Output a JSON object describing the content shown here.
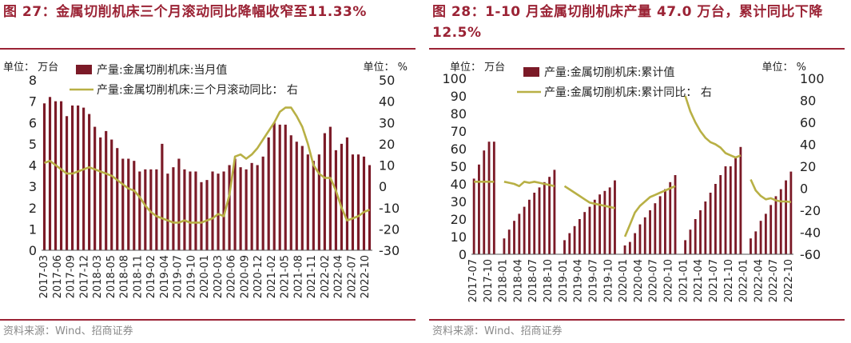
{
  "charts": [
    {
      "title": "图 27：金属切削机床三个月滚动同比降幅收窄至11.33%",
      "source": "资料来源：Wind、招商证券",
      "left_unit": "单位：  万台",
      "right_unit": "单位：  %",
      "legend": {
        "bar": "产量:金属切削机床:当月值",
        "line": "产量:金属切削机床:三个月滚动同比：  右"
      }
    },
    {
      "title": "图 28：1-10 月金属切削机床产量 47.0 万台，累计同比下降 12.5%",
      "source": "资料来源：Wind、招商证券",
      "left_unit": "单位：  万台",
      "right_unit": "单位：  %",
      "legend": {
        "bar": "产量:金属切削机床:累计值",
        "line": "产量:金属切削机床:累计同比：  右"
      }
    }
  ],
  "chart_data": [
    {
      "type": "bar+line",
      "colors": {
        "bar": "#7B1A27",
        "line": "#B8B045"
      },
      "x_ticks": [
        "2017-03",
        "2017-06",
        "2017-09",
        "2017-12",
        "2018-03",
        "2018-05",
        "2018-08",
        "2018-11",
        "2019-02",
        "2019-04",
        "2019-07",
        "2019-10",
        "2020-01",
        "2020-03",
        "2020-06",
        "2020-09",
        "2020-12",
        "2021-02",
        "2021-05",
        "2021-08",
        "2021-11",
        "2022-02",
        "2022-04",
        "2022-07",
        "2022-10"
      ],
      "ylim_left": [
        0,
        8
      ],
      "yticks_left": [
        0,
        1,
        2,
        3,
        4,
        5,
        6,
        7,
        8
      ],
      "ylim_right": [
        -30,
        50
      ],
      "yticks_right": [
        -30,
        -20,
        -10,
        0,
        10,
        20,
        30,
        40,
        50
      ],
      "bar_values": [
        6.9,
        7.2,
        7.0,
        7.0,
        6.3,
        6.8,
        6.8,
        6.7,
        6.4,
        5.8,
        5.3,
        5.6,
        5.2,
        4.8,
        4.3,
        4.3,
        4.2,
        3.7,
        3.8,
        3.8,
        3.8,
        5.0,
        3.6,
        3.9,
        4.3,
        3.8,
        3.7,
        3.7,
        3.2,
        3.3,
        3.7,
        3.6,
        3.7,
        4.0,
        4.3,
        3.9,
        3.8,
        4.1,
        4.0,
        4.4,
        5.3,
        6.0,
        5.9,
        5.9,
        5.4,
        5.1,
        4.9,
        4.5,
        4.2,
        4.5,
        5.5,
        5.8,
        4.7,
        5.0,
        5.3,
        4.5,
        4.5,
        4.4,
        4.0
      ],
      "line_values": [
        11,
        12,
        10,
        8,
        6,
        6,
        7,
        8,
        9,
        8,
        7,
        6,
        5,
        3,
        1,
        -1,
        -2,
        -5,
        -9,
        -12,
        -14,
        -15,
        -16,
        -17,
        -17,
        -16,
        -17,
        -17,
        -17,
        -16,
        -15,
        -13,
        -14,
        -4,
        14,
        15,
        13,
        15,
        18,
        22,
        26,
        30,
        35,
        37,
        37,
        33,
        28,
        20,
        10,
        6,
        4,
        4,
        -2,
        -10,
        -16,
        -15,
        -14,
        -12,
        -11
      ]
    },
    {
      "type": "bar+line",
      "colors": {
        "bar": "#7B1A27",
        "line": "#B8B045"
      },
      "x_ticks": [
        "2017-07",
        "2017-10",
        "2018-01",
        "2018-04",
        "2018-07",
        "2018-10",
        "2019-01",
        "2019-04",
        "2019-07",
        "2019-10",
        "2020-01",
        "2020-04",
        "2020-07",
        "2020-10",
        "2021-01",
        "2021-04",
        "2021-07",
        "2021-10",
        "2022-01",
        "2022-04",
        "2022-07",
        "2022-10"
      ],
      "ylim_left": [
        0,
        100
      ],
      "yticks_left": [
        0,
        10,
        20,
        30,
        40,
        50,
        60,
        70,
        80,
        90,
        100
      ],
      "ylim_right": [
        -60,
        100
      ],
      "yticks_right": [
        -60,
        -40,
        -20,
        0,
        20,
        40,
        60,
        80,
        100
      ],
      "bar_values": [
        43,
        51,
        59,
        64,
        64,
        null,
        9,
        14,
        19,
        23,
        27,
        31,
        35,
        38,
        41,
        44,
        48,
        null,
        8,
        12,
        16,
        20,
        24,
        27,
        31,
        34,
        36,
        38,
        42,
        null,
        5,
        7,
        12,
        17,
        21,
        25,
        29,
        33,
        37,
        41,
        45,
        null,
        8,
        14,
        20,
        25,
        30,
        35,
        40,
        45,
        50,
        50,
        55,
        61,
        null,
        9,
        13,
        19,
        23,
        28,
        33,
        37,
        42,
        47
      ],
      "line_values": [
        6,
        6,
        6,
        6,
        6,
        null,
        6,
        5,
        4,
        2,
        6,
        5,
        6,
        5,
        4,
        3,
        2,
        null,
        2,
        -1,
        -4,
        -7,
        -10,
        -13,
        -14,
        -15,
        -16,
        -17,
        -18,
        null,
        -44,
        -33,
        -22,
        -16,
        -12,
        -8,
        -6,
        -4,
        -2,
        0,
        2,
        null,
        84,
        70,
        60,
        52,
        46,
        42,
        40,
        37,
        32,
        30,
        28,
        30,
        null,
        8,
        -2,
        -7,
        -10,
        -9,
        -11,
        -12,
        -12,
        -12.5
      ]
    }
  ]
}
